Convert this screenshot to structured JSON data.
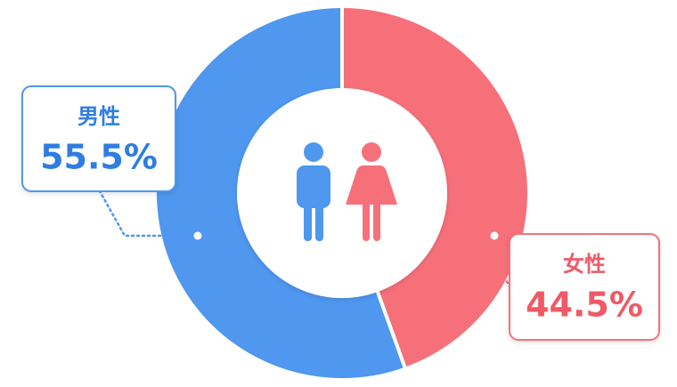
{
  "chart_data": {
    "type": "donut",
    "categories": [
      "男性",
      "女性"
    ],
    "values": [
      55.5,
      44.5
    ],
    "value_labels": [
      "55.5%",
      "44.5%"
    ],
    "colors": [
      "#4f97ef",
      "#f6707a"
    ]
  }
}
